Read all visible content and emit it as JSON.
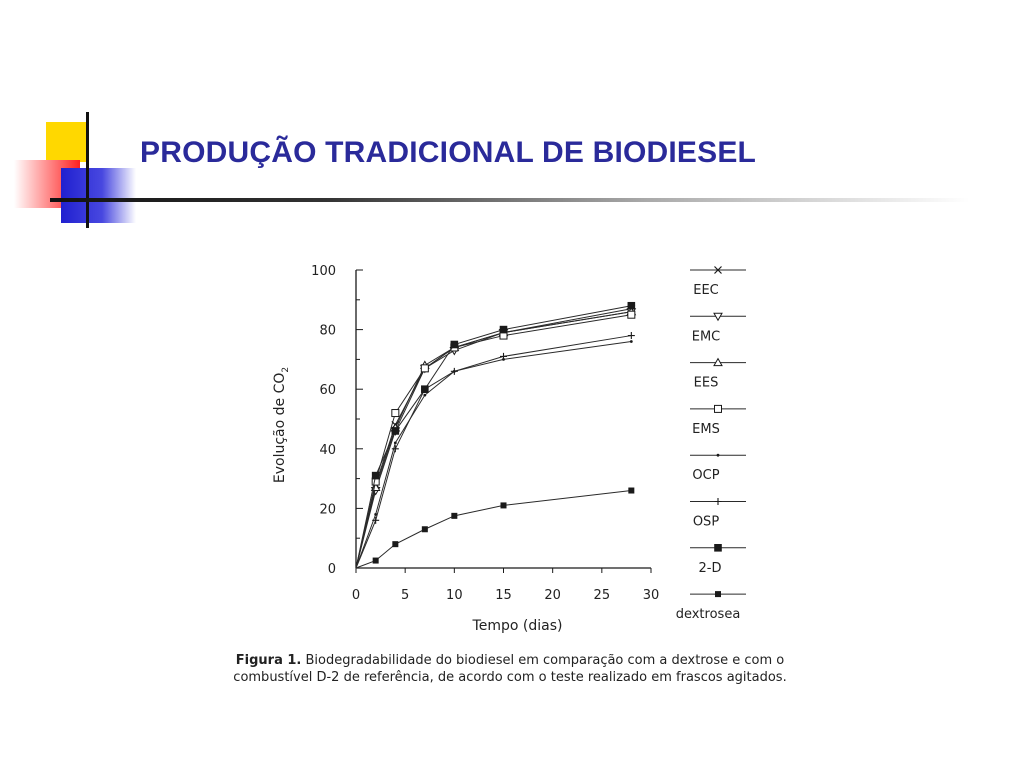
{
  "slide": {
    "title": "PRODUÇÃO TRADICIONAL DE BIODIESEL"
  },
  "caption": {
    "label": "Figura 1.",
    "text": " Biodegradabilidade do biodiesel em comparação com a dextrose e com o combustível D-2 de referência, de acordo com o teste realizado em frascos agitados."
  },
  "chart_data": {
    "type": "line",
    "xlabel": "Tempo (dias)",
    "ylabel_main": "Evolução de CO",
    "ylabel_sub": "2",
    "xlim": [
      0,
      30
    ],
    "ylim": [
      0,
      100
    ],
    "x_ticks": [
      0,
      5,
      10,
      15,
      20,
      25,
      30
    ],
    "y_ticks": [
      0,
      20,
      40,
      60,
      80,
      100
    ],
    "legend_position": "right",
    "series": [
      {
        "name": "EEC",
        "marker": "x",
        "x": [
          0,
          2,
          4,
          7,
          10,
          15,
          28
        ],
        "y": [
          0,
          28,
          48,
          67,
          74,
          79,
          87
        ]
      },
      {
        "name": "EMC",
        "marker": "triangle-down",
        "x": [
          0,
          2,
          4,
          7,
          10,
          15,
          28
        ],
        "y": [
          0,
          26,
          46,
          67,
          73,
          79,
          86
        ]
      },
      {
        "name": "EES",
        "marker": "triangle-up",
        "x": [
          0,
          2,
          4,
          7,
          10,
          15,
          28
        ],
        "y": [
          0,
          27,
          47,
          68,
          74,
          79,
          86
        ]
      },
      {
        "name": "EMS",
        "marker": "open-square",
        "x": [
          0,
          2,
          4,
          7,
          10,
          15,
          28
        ],
        "y": [
          0,
          29,
          52,
          67,
          74,
          78,
          85
        ]
      },
      {
        "name": "OCP",
        "marker": "dot",
        "x": [
          0,
          2,
          4,
          7,
          10,
          15,
          28
        ],
        "y": [
          0,
          18,
          42,
          58,
          66,
          70,
          76
        ]
      },
      {
        "name": "OSP",
        "marker": "plus",
        "x": [
          0,
          2,
          4,
          7,
          10,
          15,
          28
        ],
        "y": [
          0,
          16,
          40,
          60,
          66,
          71,
          78
        ]
      },
      {
        "name": "2-D",
        "marker": "filled-square",
        "x": [
          0,
          2,
          4,
          7,
          10,
          15,
          28
        ],
        "y": [
          0,
          31,
          46,
          60,
          75,
          80,
          88
        ]
      },
      {
        "name": "dextrosea",
        "marker": "small-filled-square",
        "x": [
          0,
          2,
          4,
          7,
          10,
          15,
          28
        ],
        "y": [
          0,
          2.5,
          8,
          13,
          17.5,
          21,
          26
        ]
      }
    ]
  }
}
